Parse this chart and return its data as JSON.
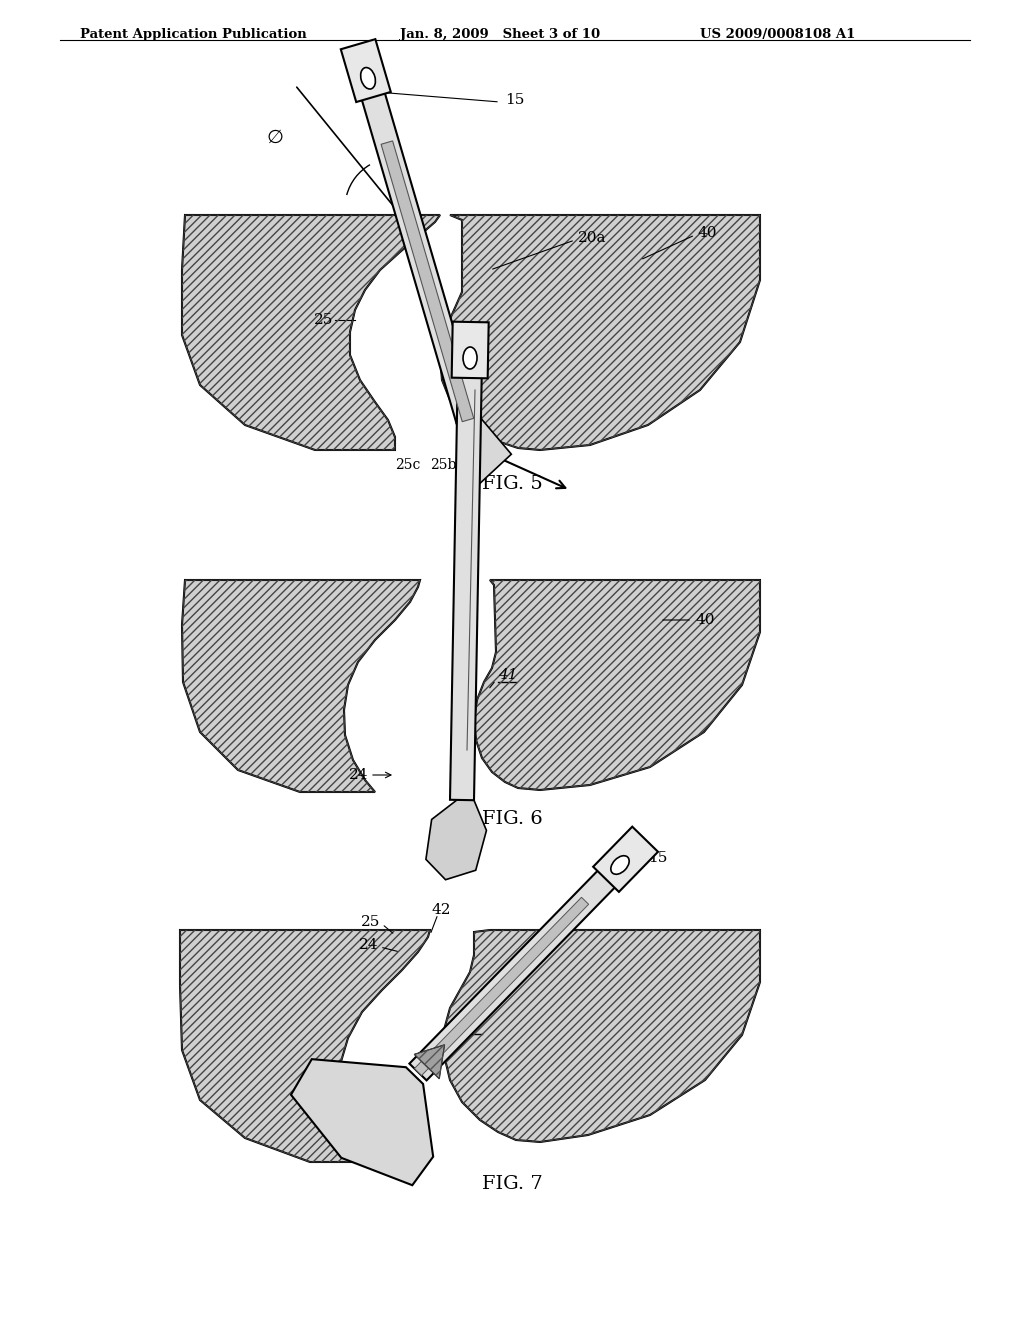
{
  "title_left": "Patent Application Publication",
  "title_center": "Jan. 8, 2009   Sheet 3 of 10",
  "title_right": "US 2009/0008108 A1",
  "fig5_caption": "FIG. 5",
  "fig6_caption": "FIG. 6",
  "fig7_caption": "FIG. 7",
  "background_color": "#ffffff",
  "line_color": "#000000"
}
